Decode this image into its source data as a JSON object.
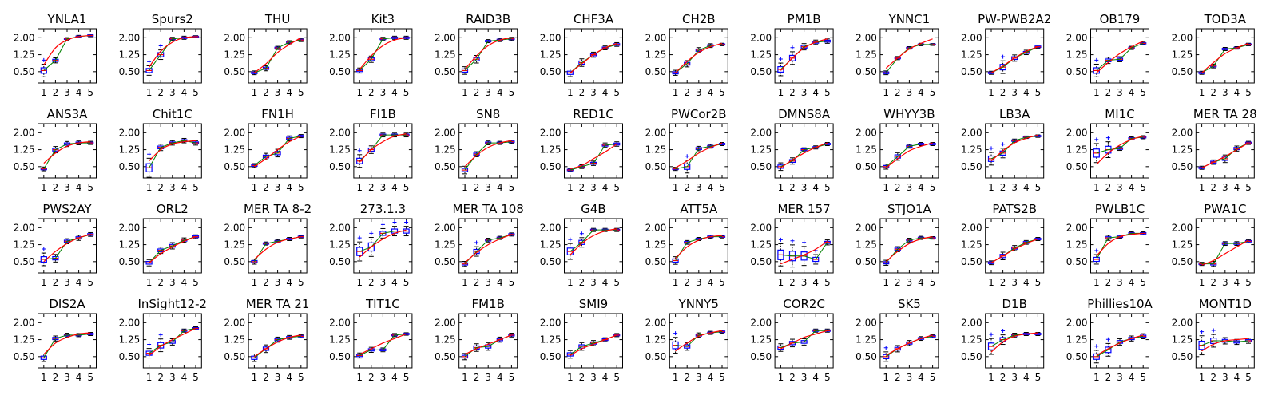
{
  "chart_data": {
    "type": "box",
    "layout": {
      "rows": 4,
      "cols": 12
    },
    "x_ticks": [
      "1",
      "2",
      "3",
      "4",
      "5"
    ],
    "y_ticks": [
      "0.50",
      "1.25",
      "2.00"
    ],
    "ylim": [
      0.0,
      2.4
    ],
    "colors": {
      "box": "#0000ff",
      "median": "#ff0000",
      "mean_line": "#008000",
      "fit_line": "#ff0000",
      "flier": "#0000ff",
      "whisker": "#000000"
    },
    "panels": [
      {
        "title": "YNLA1",
        "medians": [
          0.55,
          1.0,
          1.95,
          2.05,
          2.1
        ],
        "spread": [
          0.2,
          0.08,
          0.04,
          0.04,
          0.04
        ],
        "fit": [
          0.8,
          1.55,
          1.9,
          2.05,
          2.1
        ]
      },
      {
        "title": "Spurs2",
        "medians": [
          0.55,
          1.25,
          1.95,
          2.0,
          2.05
        ],
        "spread": [
          0.15,
          0.15,
          0.05,
          0.05,
          0.03
        ],
        "fit": [
          0.7,
          1.4,
          1.8,
          2.0,
          2.05
        ]
      },
      {
        "title": "THU",
        "medians": [
          0.45,
          0.65,
          1.55,
          1.8,
          1.9
        ],
        "spread": [
          0.06,
          0.08,
          0.05,
          0.05,
          0.05
        ],
        "fit": [
          0.45,
          0.85,
          1.35,
          1.7,
          2.0
        ]
      },
      {
        "title": "Kit3",
        "medians": [
          0.55,
          1.05,
          1.95,
          2.0,
          2.0
        ],
        "spread": [
          0.08,
          0.1,
          0.05,
          0.05,
          0.05
        ],
        "fit": [
          0.6,
          1.2,
          1.65,
          1.9,
          2.0
        ]
      },
      {
        "title": "RAID3B",
        "medians": [
          0.55,
          1.05,
          1.85,
          1.9,
          1.95
        ],
        "spread": [
          0.12,
          0.12,
          0.05,
          0.05,
          0.05
        ],
        "fit": [
          0.6,
          1.2,
          1.65,
          1.9,
          2.0
        ]
      },
      {
        "title": "CHF3A",
        "medians": [
          0.45,
          0.9,
          1.25,
          1.55,
          1.7
        ],
        "spread": [
          0.12,
          0.12,
          0.08,
          0.06,
          0.06
        ],
        "fit": [
          0.45,
          0.85,
          1.25,
          1.55,
          1.75
        ]
      },
      {
        "title": "CH2B",
        "medians": [
          0.45,
          0.85,
          1.45,
          1.65,
          1.7
        ],
        "spread": [
          0.08,
          0.1,
          0.08,
          0.06,
          0.04
        ],
        "fit": [
          0.45,
          0.95,
          1.35,
          1.6,
          1.75
        ]
      },
      {
        "title": "PM1B",
        "medians": [
          0.6,
          1.1,
          1.6,
          1.8,
          1.85
        ],
        "spread": [
          0.2,
          0.2,
          0.1,
          0.07,
          0.07
        ],
        "fit": [
          0.55,
          1.1,
          1.55,
          1.8,
          1.95
        ]
      },
      {
        "title": "YNNC1",
        "medians": [
          0.45,
          1.1,
          1.55,
          1.7,
          1.7
        ],
        "spread": [
          0.06,
          0.05,
          0.04,
          0.04,
          0.03
        ],
        "fit": [
          0.65,
          1.1,
          1.5,
          1.75,
          1.95
        ]
      },
      {
        "title": "PW-PWB2A2",
        "medians": [
          0.45,
          0.7,
          1.1,
          1.35,
          1.6
        ],
        "spread": [
          0.05,
          0.2,
          0.1,
          0.07,
          0.05
        ],
        "fit": [
          0.45,
          0.75,
          1.1,
          1.4,
          1.6
        ]
      },
      {
        "title": "OB179",
        "medians": [
          0.55,
          1.0,
          1.05,
          1.55,
          1.75
        ],
        "spread": [
          0.2,
          0.1,
          0.08,
          0.05,
          0.04
        ],
        "fit": [
          0.45,
          0.9,
          1.3,
          1.6,
          1.85
        ]
      },
      {
        "title": "TOD3A",
        "medians": [
          0.45,
          0.75,
          1.5,
          1.55,
          1.7
        ],
        "spread": [
          0.05,
          0.06,
          0.05,
          0.04,
          0.04
        ],
        "fit": [
          0.45,
          0.9,
          1.3,
          1.55,
          1.75
        ]
      },
      {
        "title": "ANS3A",
        "medians": [
          0.4,
          1.25,
          1.5,
          1.55,
          1.55
        ],
        "spread": [
          0.06,
          0.1,
          0.08,
          0.06,
          0.05
        ],
        "fit": [
          0.65,
          1.1,
          1.4,
          1.55,
          1.6
        ]
      },
      {
        "title": "Chit1C",
        "medians": [
          0.45,
          1.35,
          1.55,
          1.65,
          1.55
        ],
        "spread": [
          0.3,
          0.1,
          0.07,
          0.07,
          0.07
        ],
        "fit": [
          0.75,
          1.25,
          1.5,
          1.6,
          1.65
        ]
      },
      {
        "title": "FN1H",
        "medians": [
          0.55,
          0.95,
          1.1,
          1.75,
          1.85
        ],
        "spread": [
          0.06,
          0.1,
          0.12,
          0.08,
          0.05
        ],
        "fit": [
          0.5,
          0.85,
          1.25,
          1.6,
          1.85
        ]
      },
      {
        "title": "FI1B",
        "medians": [
          0.75,
          1.25,
          1.9,
          1.9,
          1.9
        ],
        "spread": [
          0.2,
          0.12,
          0.06,
          0.06,
          0.06
        ],
        "fit": [
          0.7,
          1.25,
          1.6,
          1.85,
          1.95
        ]
      },
      {
        "title": "SN8",
        "medians": [
          0.35,
          1.05,
          1.55,
          1.55,
          1.6
        ],
        "spread": [
          0.12,
          0.08,
          0.06,
          0.05,
          0.05
        ],
        "fit": [
          0.5,
          1.0,
          1.35,
          1.55,
          1.65
        ]
      },
      {
        "title": "RED1C",
        "medians": [
          0.35,
          0.5,
          0.65,
          1.45,
          1.5
        ],
        "spread": [
          0.05,
          0.06,
          0.07,
          0.07,
          0.07
        ],
        "fit": [
          0.4,
          0.55,
          0.85,
          1.15,
          1.5
        ]
      },
      {
        "title": "PWCor2B",
        "medians": [
          0.4,
          0.5,
          1.3,
          1.4,
          1.5
        ],
        "spread": [
          0.05,
          0.2,
          0.07,
          0.06,
          0.05
        ],
        "fit": [
          0.45,
          0.75,
          1.1,
          1.35,
          1.55
        ]
      },
      {
        "title": "DMNS8A",
        "medians": [
          0.5,
          0.75,
          1.25,
          1.35,
          1.5
        ],
        "spread": [
          0.12,
          0.1,
          0.06,
          0.05,
          0.05
        ],
        "fit": [
          0.45,
          0.8,
          1.1,
          1.35,
          1.55
        ]
      },
      {
        "title": "WHYY3B",
        "medians": [
          0.5,
          0.95,
          1.4,
          1.5,
          1.5
        ],
        "spread": [
          0.08,
          0.12,
          0.06,
          0.05,
          0.05
        ],
        "fit": [
          0.45,
          0.85,
          1.2,
          1.4,
          1.55
        ]
      },
      {
        "title": "LB3A",
        "medians": [
          0.85,
          1.1,
          1.65,
          1.8,
          1.85
        ],
        "spread": [
          0.2,
          0.15,
          0.05,
          0.04,
          0.04
        ],
        "fit": [
          0.75,
          1.2,
          1.55,
          1.75,
          1.9
        ]
      },
      {
        "title": "MI1C",
        "medians": [
          1.1,
          1.25,
          1.3,
          1.75,
          1.8
        ],
        "spread": [
          0.3,
          0.25,
          0.06,
          0.05,
          0.05
        ],
        "fit": [
          0.6,
          1.1,
          1.45,
          1.7,
          1.85
        ]
      },
      {
        "title": "MER TA 28",
        "medians": [
          0.45,
          0.7,
          0.85,
          1.3,
          1.55
        ],
        "spread": [
          0.05,
          0.07,
          0.12,
          0.08,
          0.05
        ],
        "fit": [
          0.45,
          0.7,
          0.95,
          1.25,
          1.55
        ]
      },
      {
        "title": "PWS2AY",
        "medians": [
          0.6,
          0.65,
          1.4,
          1.55,
          1.7
        ],
        "spread": [
          0.2,
          0.12,
          0.08,
          0.08,
          0.06
        ],
        "fit": [
          0.5,
          0.95,
          1.3,
          1.55,
          1.7
        ]
      },
      {
        "title": "ORL2",
        "medians": [
          0.45,
          1.0,
          1.2,
          1.45,
          1.6
        ],
        "spread": [
          0.1,
          0.1,
          0.1,
          0.07,
          0.06
        ],
        "fit": [
          0.45,
          0.85,
          1.15,
          1.4,
          1.6
        ]
      },
      {
        "title": "MER TA 8-2",
        "medians": [
          0.5,
          1.3,
          1.4,
          1.5,
          1.6
        ],
        "spread": [
          0.08,
          0.05,
          0.05,
          0.05,
          0.04
        ],
        "fit": [
          0.6,
          1.05,
          1.35,
          1.5,
          1.6
        ]
      },
      {
        "title": "273.1.3",
        "medians": [
          0.95,
          1.15,
          1.75,
          1.85,
          1.85
        ],
        "spread": [
          0.3,
          0.3,
          0.15,
          0.15,
          0.15
        ],
        "fit": [
          0.7,
          1.15,
          1.5,
          1.75,
          1.9
        ]
      },
      {
        "title": "MER TA 108",
        "medians": [
          0.4,
          0.95,
          1.45,
          1.55,
          1.7
        ],
        "spread": [
          0.08,
          0.15,
          0.06,
          0.05,
          0.05
        ],
        "fit": [
          0.45,
          0.9,
          1.25,
          1.5,
          1.7
        ]
      },
      {
        "title": "G4B",
        "medians": [
          0.95,
          1.35,
          1.9,
          1.9,
          1.9
        ],
        "spread": [
          0.25,
          0.15,
          0.05,
          0.05,
          0.05
        ],
        "fit": [
          0.8,
          1.3,
          1.65,
          1.85,
          1.95
        ]
      },
      {
        "title": "ATT5A",
        "medians": [
          0.55,
          1.35,
          1.5,
          1.6,
          1.6
        ],
        "spread": [
          0.12,
          0.06,
          0.05,
          0.05,
          0.04
        ],
        "fit": [
          0.65,
          1.15,
          1.45,
          1.6,
          1.65
        ]
      },
      {
        "title": "MER 157",
        "medians": [
          0.8,
          0.75,
          0.75,
          0.6,
          1.35
        ],
        "spread": [
          0.35,
          0.35,
          0.3,
          0.15,
          0.08
        ],
        "fit": [
          0.4,
          0.6,
          0.8,
          1.05,
          1.4
        ]
      },
      {
        "title": "STJO1A",
        "medians": [
          0.45,
          1.05,
          1.45,
          1.55,
          1.55
        ],
        "spread": [
          0.08,
          0.08,
          0.06,
          0.05,
          0.04
        ],
        "fit": [
          0.5,
          0.95,
          1.3,
          1.5,
          1.6
        ]
      },
      {
        "title": "PATS2B",
        "medians": [
          0.45,
          0.75,
          1.1,
          1.35,
          1.5
        ],
        "spread": [
          0.06,
          0.12,
          0.08,
          0.06,
          0.05
        ],
        "fit": [
          0.45,
          0.75,
          1.05,
          1.3,
          1.5
        ]
      },
      {
        "title": "PWLB1C",
        "medians": [
          0.6,
          1.55,
          1.6,
          1.75,
          1.75
        ],
        "spread": [
          0.15,
          0.08,
          0.05,
          0.05,
          0.05
        ],
        "fit": [
          0.75,
          1.3,
          1.6,
          1.7,
          1.75
        ]
      },
      {
        "title": "PWA1C",
        "medians": [
          0.4,
          0.4,
          1.3,
          1.3,
          1.4
        ],
        "spread": [
          0.05,
          0.08,
          0.06,
          0.06,
          0.05
        ],
        "fit": [
          0.35,
          0.55,
          0.85,
          1.15,
          1.45
        ]
      },
      {
        "title": "DIS2A",
        "medians": [
          0.45,
          1.3,
          1.45,
          1.45,
          1.5
        ],
        "spread": [
          0.12,
          0.08,
          0.06,
          0.05,
          0.05
        ],
        "fit": [
          0.6,
          1.1,
          1.35,
          1.5,
          1.55
        ]
      },
      {
        "title": "InSight12-2",
        "medians": [
          0.65,
          1.0,
          1.15,
          1.65,
          1.75
        ],
        "spread": [
          0.15,
          0.2,
          0.1,
          0.05,
          0.05
        ],
        "fit": [
          0.55,
          0.95,
          1.25,
          1.5,
          1.75
        ]
      },
      {
        "title": "MER TA 21",
        "medians": [
          0.45,
          0.85,
          1.25,
          1.35,
          1.4
        ],
        "spread": [
          0.12,
          0.12,
          0.08,
          0.06,
          0.05
        ],
        "fit": [
          0.5,
          0.85,
          1.15,
          1.35,
          1.45
        ]
      },
      {
        "title": "TIT1C",
        "medians": [
          0.55,
          0.8,
          0.8,
          1.45,
          1.5
        ],
        "spread": [
          0.08,
          0.08,
          0.06,
          0.05,
          0.04
        ],
        "fit": [
          0.6,
          0.85,
          1.1,
          1.3,
          1.5
        ]
      },
      {
        "title": "FM1B",
        "medians": [
          0.5,
          0.9,
          0.95,
          1.25,
          1.45
        ],
        "spread": [
          0.1,
          0.12,
          0.12,
          0.08,
          0.06
        ],
        "fit": [
          0.6,
          0.85,
          1.05,
          1.25,
          1.45
        ]
      },
      {
        "title": "SMI9",
        "medians": [
          0.6,
          0.95,
          1.1,
          1.25,
          1.45
        ],
        "spread": [
          0.12,
          0.12,
          0.08,
          0.06,
          0.05
        ],
        "fit": [
          0.55,
          0.85,
          1.05,
          1.25,
          1.45
        ]
      },
      {
        "title": "YNNY5",
        "medians": [
          1.0,
          0.95,
          1.45,
          1.55,
          1.6
        ],
        "spread": [
          0.25,
          0.12,
          0.07,
          0.05,
          0.05
        ],
        "fit": [
          0.75,
          1.1,
          1.4,
          1.55,
          1.65
        ]
      },
      {
        "title": "COR2C",
        "medians": [
          0.9,
          1.1,
          1.15,
          1.65,
          1.65
        ],
        "spread": [
          0.12,
          0.12,
          0.1,
          0.05,
          0.05
        ],
        "fit": [
          0.85,
          1.1,
          1.35,
          1.5,
          1.65
        ]
      },
      {
        "title": "SK5",
        "medians": [
          0.5,
          0.85,
          1.1,
          1.3,
          1.4
        ],
        "spread": [
          0.15,
          0.1,
          0.08,
          0.06,
          0.05
        ],
        "fit": [
          0.55,
          0.85,
          1.1,
          1.3,
          1.45
        ]
      },
      {
        "title": "D1B",
        "medians": [
          0.95,
          1.25,
          1.45,
          1.5,
          1.5
        ],
        "spread": [
          0.25,
          0.15,
          0.06,
          0.05,
          0.05
        ],
        "fit": [
          0.7,
          1.15,
          1.4,
          1.5,
          1.55
        ]
      },
      {
        "title": "Phillies10A",
        "medians": [
          0.5,
          0.8,
          1.15,
          1.3,
          1.4
        ],
        "spread": [
          0.2,
          0.2,
          0.1,
          0.08,
          0.08
        ],
        "fit": [
          0.55,
          0.85,
          1.1,
          1.3,
          1.45
        ]
      },
      {
        "title": "MONT1D",
        "medians": [
          1.0,
          1.2,
          1.2,
          1.15,
          1.2
        ],
        "spread": [
          0.3,
          0.2,
          0.1,
          0.08,
          0.08
        ],
        "fit": [
          0.75,
          1.05,
          1.2,
          1.25,
          1.3
        ]
      }
    ]
  }
}
